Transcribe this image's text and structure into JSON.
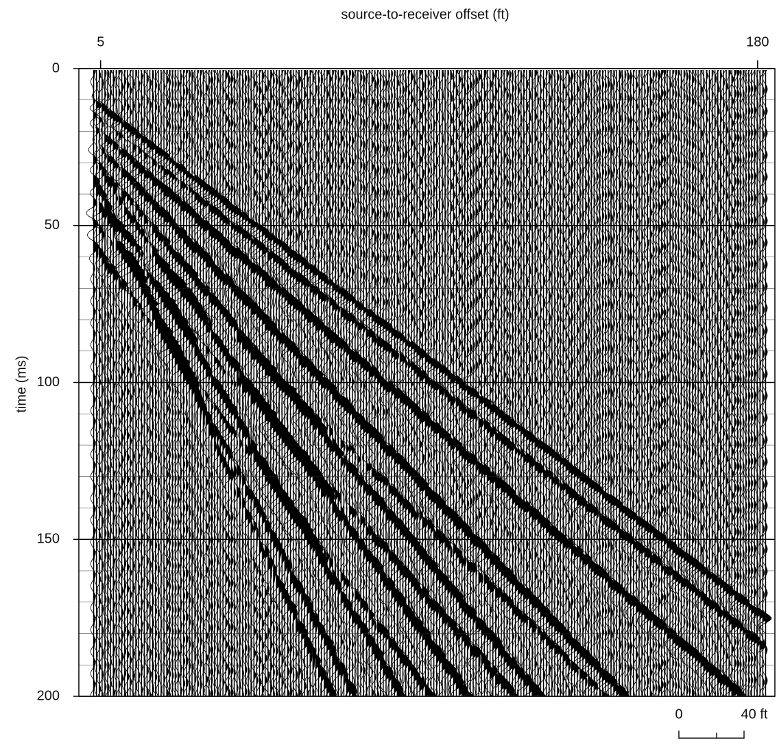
{
  "chart_data": {
    "type": "seismic-gather",
    "x_label": "source-to-receiver offset (ft)",
    "y_label": "time (ms)",
    "xlim": [
      -0.8,
      184.6
    ],
    "xticks": [
      5,
      180
    ],
    "ylim": [
      0,
      200
    ],
    "yticks": [
      0,
      50,
      100,
      150,
      200
    ],
    "minor_yticks": [
      10,
      20,
      30,
      40,
      60,
      70,
      80,
      90,
      110,
      120,
      130,
      140,
      160,
      170,
      180,
      190
    ],
    "grid": true,
    "color": "#000000",
    "scale_bar": {
      "labels": [
        "0",
        "40 ft"
      ]
    }
  }
}
